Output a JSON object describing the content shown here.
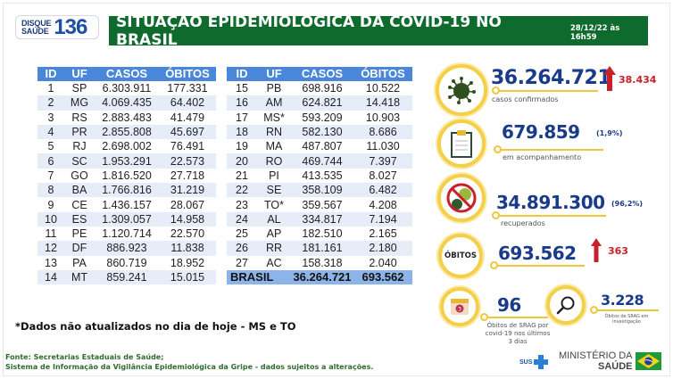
{
  "header": {
    "hotline_top": "DISQUE",
    "hotline_bottom": "SAÚDE",
    "hotline_number": "136",
    "title": "SITUAÇÃO EPIDEMIOLÓGICA DA COVID-19 NO BRASIL",
    "timestamp": "28/12/22 às 16h59"
  },
  "table": {
    "columns": [
      "ID",
      "UF",
      "CASOS",
      "ÓBITOS"
    ],
    "left_rows": [
      {
        "id": "1",
        "uf": "SP",
        "casos": "6.303.911",
        "obitos": "177.331"
      },
      {
        "id": "2",
        "uf": "MG",
        "casos": "4.069.435",
        "obitos": "64.402"
      },
      {
        "id": "3",
        "uf": "RS",
        "casos": "2.883.483",
        "obitos": "41.479"
      },
      {
        "id": "4",
        "uf": "PR",
        "casos": "2.855.808",
        "obitos": "45.697"
      },
      {
        "id": "5",
        "uf": "RJ",
        "casos": "2.698.002",
        "obitos": "76.491"
      },
      {
        "id": "6",
        "uf": "SC",
        "casos": "1.953.291",
        "obitos": "22.573"
      },
      {
        "id": "7",
        "uf": "GO",
        "casos": "1.816.520",
        "obitos": "27.718"
      },
      {
        "id": "8",
        "uf": "BA",
        "casos": "1.766.816",
        "obitos": "31.219"
      },
      {
        "id": "9",
        "uf": "CE",
        "casos": "1.436.157",
        "obitos": "28.067"
      },
      {
        "id": "10",
        "uf": "ES",
        "casos": "1.309.057",
        "obitos": "14.958"
      },
      {
        "id": "11",
        "uf": "PE",
        "casos": "1.120.714",
        "obitos": "22.570"
      },
      {
        "id": "12",
        "uf": "DF",
        "casos": "886.923",
        "obitos": "11.838"
      },
      {
        "id": "13",
        "uf": "PA",
        "casos": "860.719",
        "obitos": "18.952"
      },
      {
        "id": "14",
        "uf": "MT",
        "casos": "859.241",
        "obitos": "15.015"
      }
    ],
    "right_rows": [
      {
        "id": "15",
        "uf": "PB",
        "casos": "698.916",
        "obitos": "10.522"
      },
      {
        "id": "16",
        "uf": "AM",
        "casos": "624.821",
        "obitos": "14.418"
      },
      {
        "id": "17",
        "uf": "MS*",
        "casos": "593.209",
        "obitos": "10.903"
      },
      {
        "id": "18",
        "uf": "RN",
        "casos": "582.130",
        "obitos": "8.686"
      },
      {
        "id": "19",
        "uf": "MA",
        "casos": "487.807",
        "obitos": "11.030"
      },
      {
        "id": "20",
        "uf": "RO",
        "casos": "469.744",
        "obitos": "7.397"
      },
      {
        "id": "21",
        "uf": "PI",
        "casos": "413.535",
        "obitos": "8.027"
      },
      {
        "id": "22",
        "uf": "SE",
        "casos": "358.109",
        "obitos": "6.482"
      },
      {
        "id": "23",
        "uf": "TO*",
        "casos": "359.567",
        "obitos": "4.208"
      },
      {
        "id": "24",
        "uf": "AL",
        "casos": "334.817",
        "obitos": "7.194"
      },
      {
        "id": "25",
        "uf": "AP",
        "casos": "182.510",
        "obitos": "2.165"
      },
      {
        "id": "26",
        "uf": "RR",
        "casos": "181.161",
        "obitos": "2.180"
      },
      {
        "id": "27",
        "uf": "AC",
        "casos": "158.318",
        "obitos": "2.040"
      }
    ],
    "total": {
      "label": "BRASIL",
      "casos": "36.264.721",
      "obitos": "693.562"
    }
  },
  "stats": {
    "confirmed": {
      "value": "36.264.721",
      "delta": "38.434",
      "label": "casos confirmados",
      "icon": "virus-icon"
    },
    "monitoring": {
      "value": "679.859",
      "percent": "(1,9%)",
      "label": "em acompanhamento",
      "icon": "clipboard-icon"
    },
    "recovered": {
      "value": "34.891.300",
      "percent": "(96,2%)",
      "label": "recuperados",
      "icon": "no-virus-icon"
    },
    "deaths": {
      "badge": "ÓBITOS",
      "value": "693.562",
      "delta": "363"
    },
    "srag_recent": {
      "value": "96",
      "label_line1": "Óbitos de SRAG por",
      "label_line2": "covid-19 nos últimos",
      "label_line3": "3 dias",
      "calendar_day": "3",
      "icon": "calendar-icon"
    },
    "srag_investigation": {
      "value": "3.228",
      "label_line1": "Óbitos de SRAG em",
      "label_line2": "investigação",
      "icon": "magnifier-icon"
    }
  },
  "note": "*Dados não atualizados no dia de hoje - MS e TO",
  "source": {
    "line1": "Fonte: Secretarias Estaduais de Saúde;",
    "line2": "Sistema de Informação da Vigilância Epidemiológica da Gripe - dados sujeitos a alterações."
  },
  "footer": {
    "sus": "SUS",
    "ministry_line1": "MINISTÉRIO DA",
    "ministry_line2": "SAÚDE"
  },
  "colors": {
    "title_green": "#0f6a2e",
    "table_header_blue": "#4a86d9",
    "table_alt_row": "#e6edf8",
    "table_total": "#8db4e8",
    "stat_blue": "#1a3a8a",
    "ring_yellow": "#f3cf4a",
    "delta_red": "#c8202a"
  }
}
